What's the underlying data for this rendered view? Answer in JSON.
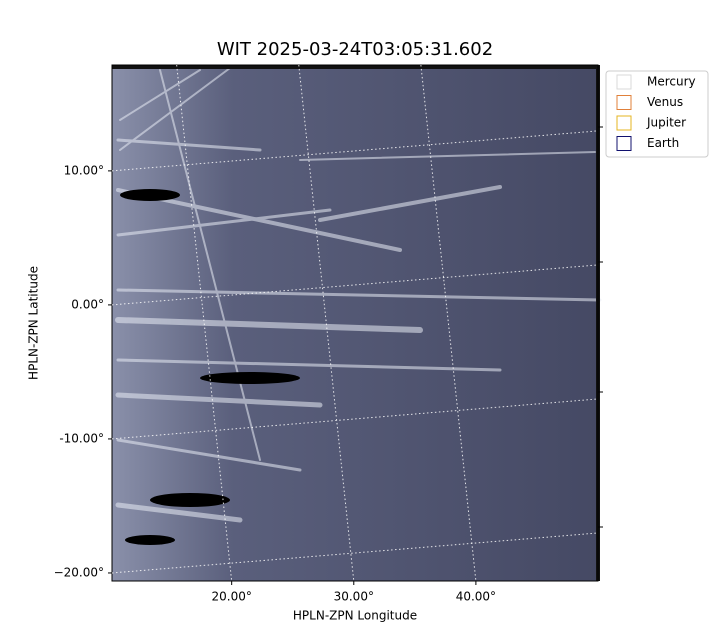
{
  "chart_data": {
    "type": "image",
    "title": "WIT 2025-03-24T03:05:31.602",
    "xlabel": "HPLN-ZPN Longitude",
    "ylabel": "HPLN-ZPN Latitude",
    "xlim": [
      10.2,
      50
    ],
    "ylim": [
      -20.6,
      17.9
    ],
    "xticks": [
      {
        "value": 20,
        "label": "20.00°"
      },
      {
        "value": 30,
        "label": "30.00°"
      },
      {
        "value": 40,
        "label": "40.00°"
      }
    ],
    "yticks": [
      {
        "value": 10,
        "label": "10.00°"
      },
      {
        "value": 0,
        "label": "0.00°"
      },
      {
        "value": -10,
        "label": "-10.00°"
      },
      {
        "value": -20,
        "label": "−20.00°"
      }
    ],
    "grid": true,
    "legend": [
      {
        "name": "Mercury",
        "color": "#d9d9d9"
      },
      {
        "name": "Venus",
        "color": "#e0803a"
      },
      {
        "name": "Jupiter",
        "color": "#e6b422"
      },
      {
        "name": "Earth",
        "color": "#10106e"
      }
    ]
  }
}
